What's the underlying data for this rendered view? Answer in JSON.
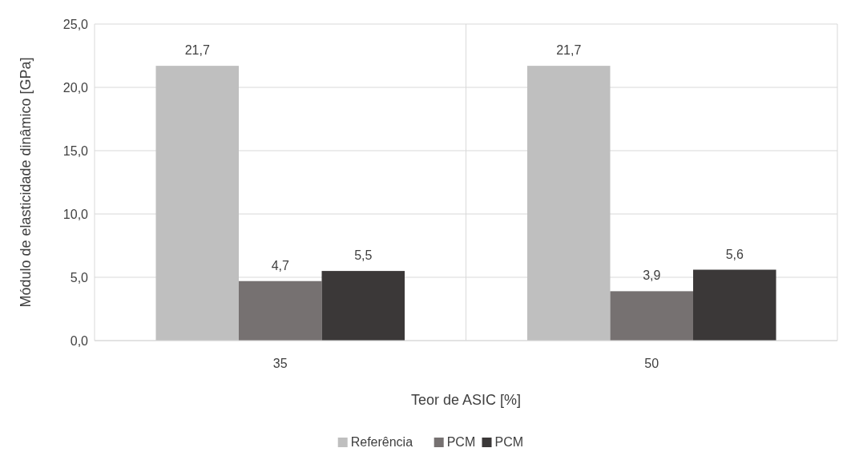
{
  "chart_data": {
    "type": "bar",
    "xlabel": "Teor de ASIC [%]",
    "ylabel": "Módulo de elasticidade dinâmico [GPa]",
    "categories": [
      "35",
      "50"
    ],
    "series": [
      {
        "name": "Referência",
        "color": "#bfbfbf",
        "values": [
          21.7,
          21.7
        ]
      },
      {
        "name": "PCM",
        "color": "#767171",
        "values": [
          4.7,
          3.9
        ]
      },
      {
        "name": "PCM",
        "color": "#3b3838",
        "values": [
          5.5,
          5.6
        ]
      }
    ],
    "ylim": [
      0,
      25
    ],
    "yticks": [
      {
        "value": 0,
        "label": "0,0"
      },
      {
        "value": 5,
        "label": "5,0"
      },
      {
        "value": 10,
        "label": "10,0"
      },
      {
        "value": 15,
        "label": "15,0"
      },
      {
        "value": 20,
        "label": "20,0"
      },
      {
        "value": 25,
        "label": "25,0"
      }
    ],
    "value_labels": [
      [
        "21,7",
        "21,7"
      ],
      [
        "4,7",
        "3,9"
      ],
      [
        "5,5",
        "5,6"
      ]
    ],
    "grid": true,
    "legend": "bottom"
  }
}
